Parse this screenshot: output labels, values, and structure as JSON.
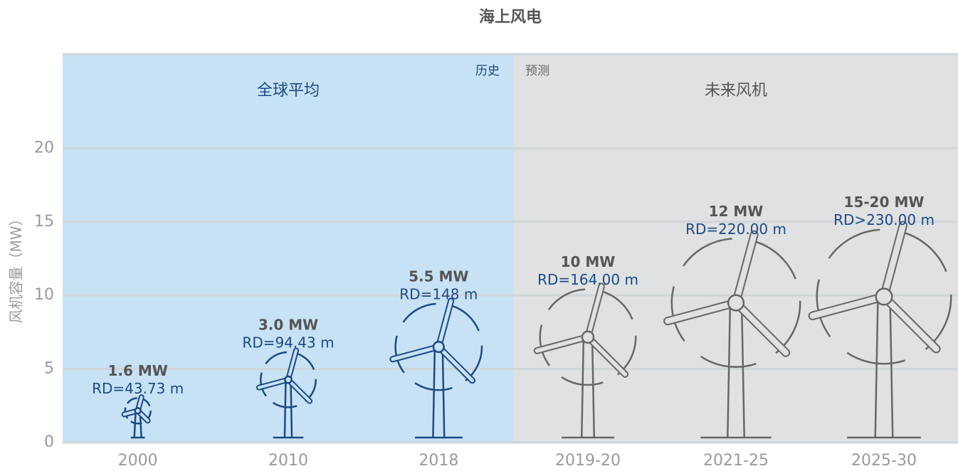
{
  "chart_data": {
    "type": "turbine",
    "title": "海上风电",
    "y_label": "风机容量（MW）",
    "ylim": [
      0,
      26.4
    ],
    "yticks": [
      0,
      5,
      10,
      15,
      20
    ],
    "grid": true,
    "regions": [
      {
        "name": "历史",
        "title": "全球平均",
        "background": "#c7e2f4",
        "color": "#1d4a86"
      },
      {
        "name": "预测",
        "title": "未来风机",
        "background": "#dfe1e2",
        "color": "#676767"
      }
    ],
    "categories": [
      "2000",
      "2010",
      "2018",
      "2019-20",
      "2021-25",
      "2025-30"
    ],
    "capacity_labels": [
      "1.6 MW",
      "3.0 MW",
      "5.5 MW",
      "10 MW",
      "12 MW",
      "15-20 MW"
    ],
    "rotor_diameters": [
      43.73,
      94.43,
      148,
      164,
      220,
      230
    ],
    "rotor_diameter_labels": [
      "RD=43.73 m",
      "RD=94.43 m",
      "RD=148 m",
      "RD=164.00 m",
      "RD=220.00 m",
      "RD>230.00 m"
    ]
  }
}
